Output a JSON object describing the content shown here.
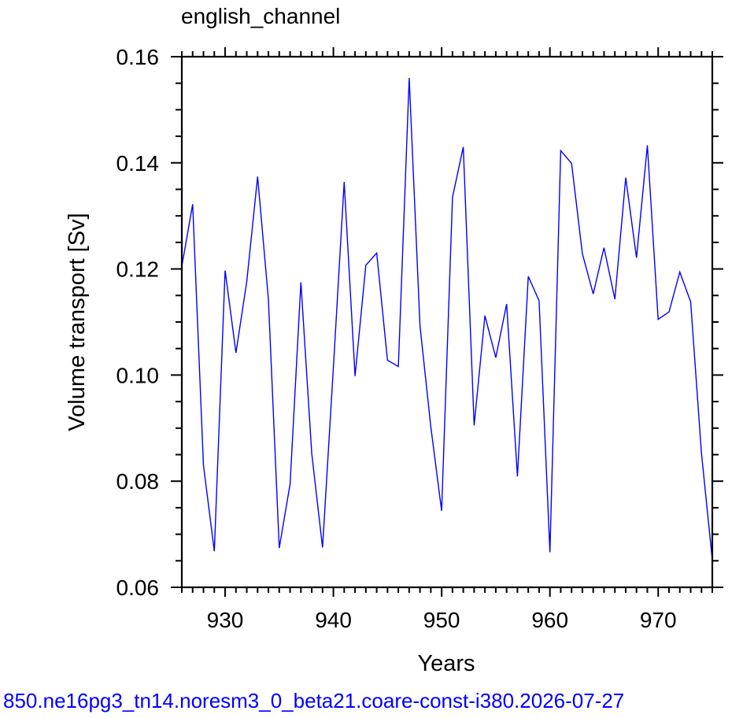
{
  "chart_data": {
    "type": "line",
    "title": "english_channel",
    "xlabel": "Years",
    "ylabel": "Volume transport [Sv]",
    "footer": "850.ne16pg3_tn14.noresm3_0_beta21.coare-const-i380.2026-07-27",
    "xlim": [
      926,
      975
    ],
    "ylim": [
      0.06,
      0.16
    ],
    "x_ticks": [
      930,
      940,
      950,
      960,
      970
    ],
    "x_tick_labels": [
      "930",
      "940",
      "950",
      "960",
      "970"
    ],
    "y_ticks": [
      0.06,
      0.08,
      0.1,
      0.12,
      0.14,
      0.16
    ],
    "y_tick_labels": [
      "0.06",
      "0.08",
      "0.10",
      "0.12",
      "0.14",
      "0.16"
    ],
    "grid": false,
    "series": [
      {
        "color": "#0000ff",
        "x": [
          926,
          927,
          928,
          929,
          930,
          931,
          932,
          933,
          934,
          935,
          936,
          937,
          938,
          939,
          940,
          941,
          942,
          943,
          944,
          945,
          946,
          947,
          948,
          949,
          950,
          951,
          952,
          953,
          954,
          955,
          956,
          957,
          958,
          959,
          960,
          961,
          962,
          963,
          964,
          965,
          966,
          967,
          968,
          969,
          970,
          971,
          972,
          973,
          974,
          975
        ],
        "y": [
          0.1205,
          0.1322,
          0.083,
          0.0668,
          0.1197,
          0.1042,
          0.1176,
          0.1374,
          0.1143,
          0.0674,
          0.0795,
          0.1175,
          0.0852,
          0.0675,
          0.1015,
          0.1364,
          0.0998,
          0.1207,
          0.123,
          0.1028,
          0.1016,
          0.156,
          0.1093,
          0.0902,
          0.0744,
          0.1335,
          0.143,
          0.0905,
          0.1112,
          0.1033,
          0.1134,
          0.0809,
          0.1186,
          0.114,
          0.0666,
          0.1423,
          0.1399,
          0.1229,
          0.1153,
          0.124,
          0.1143,
          0.1372,
          0.1221,
          0.1433,
          0.1105,
          0.1119,
          0.1194,
          0.1138,
          0.0853,
          0.0652
        ]
      }
    ]
  }
}
